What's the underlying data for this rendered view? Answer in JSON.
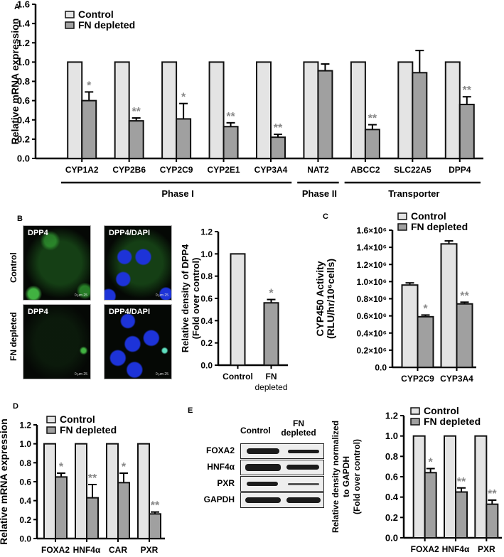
{
  "colors": {
    "control": "#e4e4e4",
    "fn_depleted": "#a0a0a0",
    "stroke": "#111111",
    "star": "#888888"
  },
  "legend": {
    "control": "Control",
    "fn_depleted": "FN depleted"
  },
  "panels": {
    "A": {
      "letter": "A"
    },
    "B": {
      "letter": "B",
      "row_labels": [
        "Control",
        "FN depleted"
      ],
      "image_labels": [
        "DPP4",
        "DPP4/DAPI",
        "DPP4",
        "DPP4/DAPI"
      ],
      "scale_text": "0 μm 25"
    },
    "C": {
      "letter": "C"
    },
    "D": {
      "letter": "D"
    },
    "E": {
      "letter": "E",
      "blot_header": [
        "Control",
        "FN depleted"
      ],
      "blot_rows": [
        "FOXA2",
        "HNF4α",
        "PXR",
        "GAPDH"
      ]
    }
  },
  "chart_data": [
    {
      "id": "A",
      "type": "bar",
      "title": "",
      "ylabel": "Relative mRNA expression",
      "xlabel": "",
      "ylim": [
        0,
        1.6
      ],
      "yticks": [
        "0.0",
        "0.2",
        "0.4",
        "0.6",
        "0.8",
        "1.0",
        "1.2",
        "1.4",
        "1.6"
      ],
      "categories": [
        "CYP1A2",
        "CYP2B6",
        "CYP2C9",
        "CYP2E1",
        "CYP3A4",
        "NAT2",
        "ABCC2",
        "SLC22A5",
        "DPP4"
      ],
      "series": [
        {
          "name": "Control",
          "values": [
            1,
            1,
            1,
            1,
            1,
            1,
            1,
            1,
            1
          ],
          "errors": [
            0,
            0,
            0,
            0,
            0,
            0,
            0,
            0,
            0
          ]
        },
        {
          "name": "FN depleted",
          "values": [
            0.6,
            0.39,
            0.41,
            0.33,
            0.22,
            0.91,
            0.3,
            0.89,
            0.56
          ],
          "errors": [
            0.09,
            0.03,
            0.16,
            0.04,
            0.03,
            0.07,
            0.05,
            0.23,
            0.08
          ]
        }
      ],
      "significance": [
        "*",
        "**",
        "*",
        "**",
        "**",
        "",
        "**",
        "",
        "**"
      ],
      "groups": [
        {
          "label": "Phase I",
          "from": 0,
          "to": 4
        },
        {
          "label": "Phase II",
          "from": 5,
          "to": 5
        },
        {
          "label": "Transporter",
          "from": 6,
          "to": 8
        }
      ],
      "legend_position": "top-left",
      "grid": false
    },
    {
      "id": "B",
      "type": "bar",
      "ylabel": "Relative density of DPP4\n(Fold over control)",
      "ylim": [
        0,
        1.2
      ],
      "yticks": [
        "0.0",
        "0.2",
        "0.4",
        "0.6",
        "0.8",
        "1.0",
        "1.2"
      ],
      "categories": [
        "Control",
        "FN depleted"
      ],
      "values": [
        1.0,
        0.56
      ],
      "errors": [
        0,
        0.03
      ],
      "significance": [
        "",
        "*"
      ],
      "grid": false
    },
    {
      "id": "C",
      "type": "bar",
      "ylabel": "CYP450 Activity\n(RLU/hr/10⁶cells)",
      "ylim": [
        0,
        1600000
      ],
      "yticks": [
        "0.0",
        "0.2×10⁶",
        "0.4×10⁶",
        "0.6×10⁶",
        "0.8×10⁶",
        "1.0×10⁶",
        "1.2×10⁶",
        "1.4×10⁶",
        "1.6×10⁶"
      ],
      "categories": [
        "CYP2C9",
        "CYP3A4"
      ],
      "series": [
        {
          "name": "Control",
          "values": [
            960000,
            1440000
          ],
          "errors": [
            25000,
            35000
          ]
        },
        {
          "name": "FN depleted",
          "values": [
            590000,
            740000
          ],
          "errors": [
            20000,
            20000
          ]
        }
      ],
      "significance": [
        "*",
        "**"
      ],
      "legend_position": "top",
      "grid": false
    },
    {
      "id": "D",
      "type": "bar",
      "ylabel": "Relative mRNA expression",
      "ylim": [
        0,
        1.2
      ],
      "yticks": [
        "0.0",
        "0.2",
        "0.4",
        "0.6",
        "0.8",
        "1.0",
        "1.2"
      ],
      "categories": [
        "FOXA2",
        "HNF4α",
        "CAR",
        "PXR"
      ],
      "series": [
        {
          "name": "Control",
          "values": [
            1,
            1,
            1,
            1
          ],
          "errors": [
            0,
            0,
            0,
            0
          ]
        },
        {
          "name": "FN depleted",
          "values": [
            0.65,
            0.43,
            0.59,
            0.26
          ],
          "errors": [
            0.04,
            0.14,
            0.1,
            0.02
          ]
        }
      ],
      "significance": [
        "*",
        "**",
        "*",
        "**"
      ],
      "legend_position": "top-left",
      "grid": false
    },
    {
      "id": "E",
      "type": "bar",
      "ylabel": "Relative density normalized\nto GAPDH\n(Fold over control)",
      "ylim": [
        0,
        1.2
      ],
      "yticks": [
        "0.0",
        "0.2",
        "0.4",
        "0.6",
        "0.8",
        "1.0",
        "1.2"
      ],
      "categories": [
        "FOXA2",
        "HNF4α",
        "PXR"
      ],
      "series": [
        {
          "name": "Control",
          "values": [
            1,
            1,
            1
          ],
          "errors": [
            0,
            0,
            0
          ]
        },
        {
          "name": "FN depleted",
          "values": [
            0.64,
            0.45,
            0.33
          ],
          "errors": [
            0.04,
            0.04,
            0.04
          ]
        }
      ],
      "significance": [
        "*",
        "**",
        "**"
      ],
      "legend_position": "top-left",
      "grid": false
    }
  ]
}
